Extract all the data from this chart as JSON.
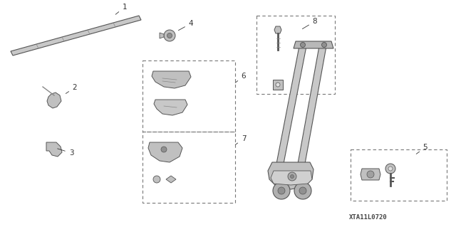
{
  "background_color": "#ffffff",
  "diagram_id": "XTA11L0720",
  "dash_color": "#777777",
  "line_color": "#666666",
  "part_color": "#bbbbbb",
  "text_color": "#333333",
  "figsize": [
    6.4,
    3.19
  ],
  "dpi": 100,
  "labels": {
    "1": [
      155,
      22,
      175,
      10
    ],
    "2": [
      88,
      135,
      105,
      123
    ],
    "3": [
      80,
      205,
      100,
      215
    ],
    "4": [
      248,
      45,
      268,
      33
    ],
    "5": [
      585,
      218,
      597,
      207
    ],
    "6": [
      330,
      118,
      342,
      107
    ],
    "7": [
      330,
      205,
      342,
      195
    ],
    "8": [
      430,
      42,
      442,
      30
    ]
  }
}
